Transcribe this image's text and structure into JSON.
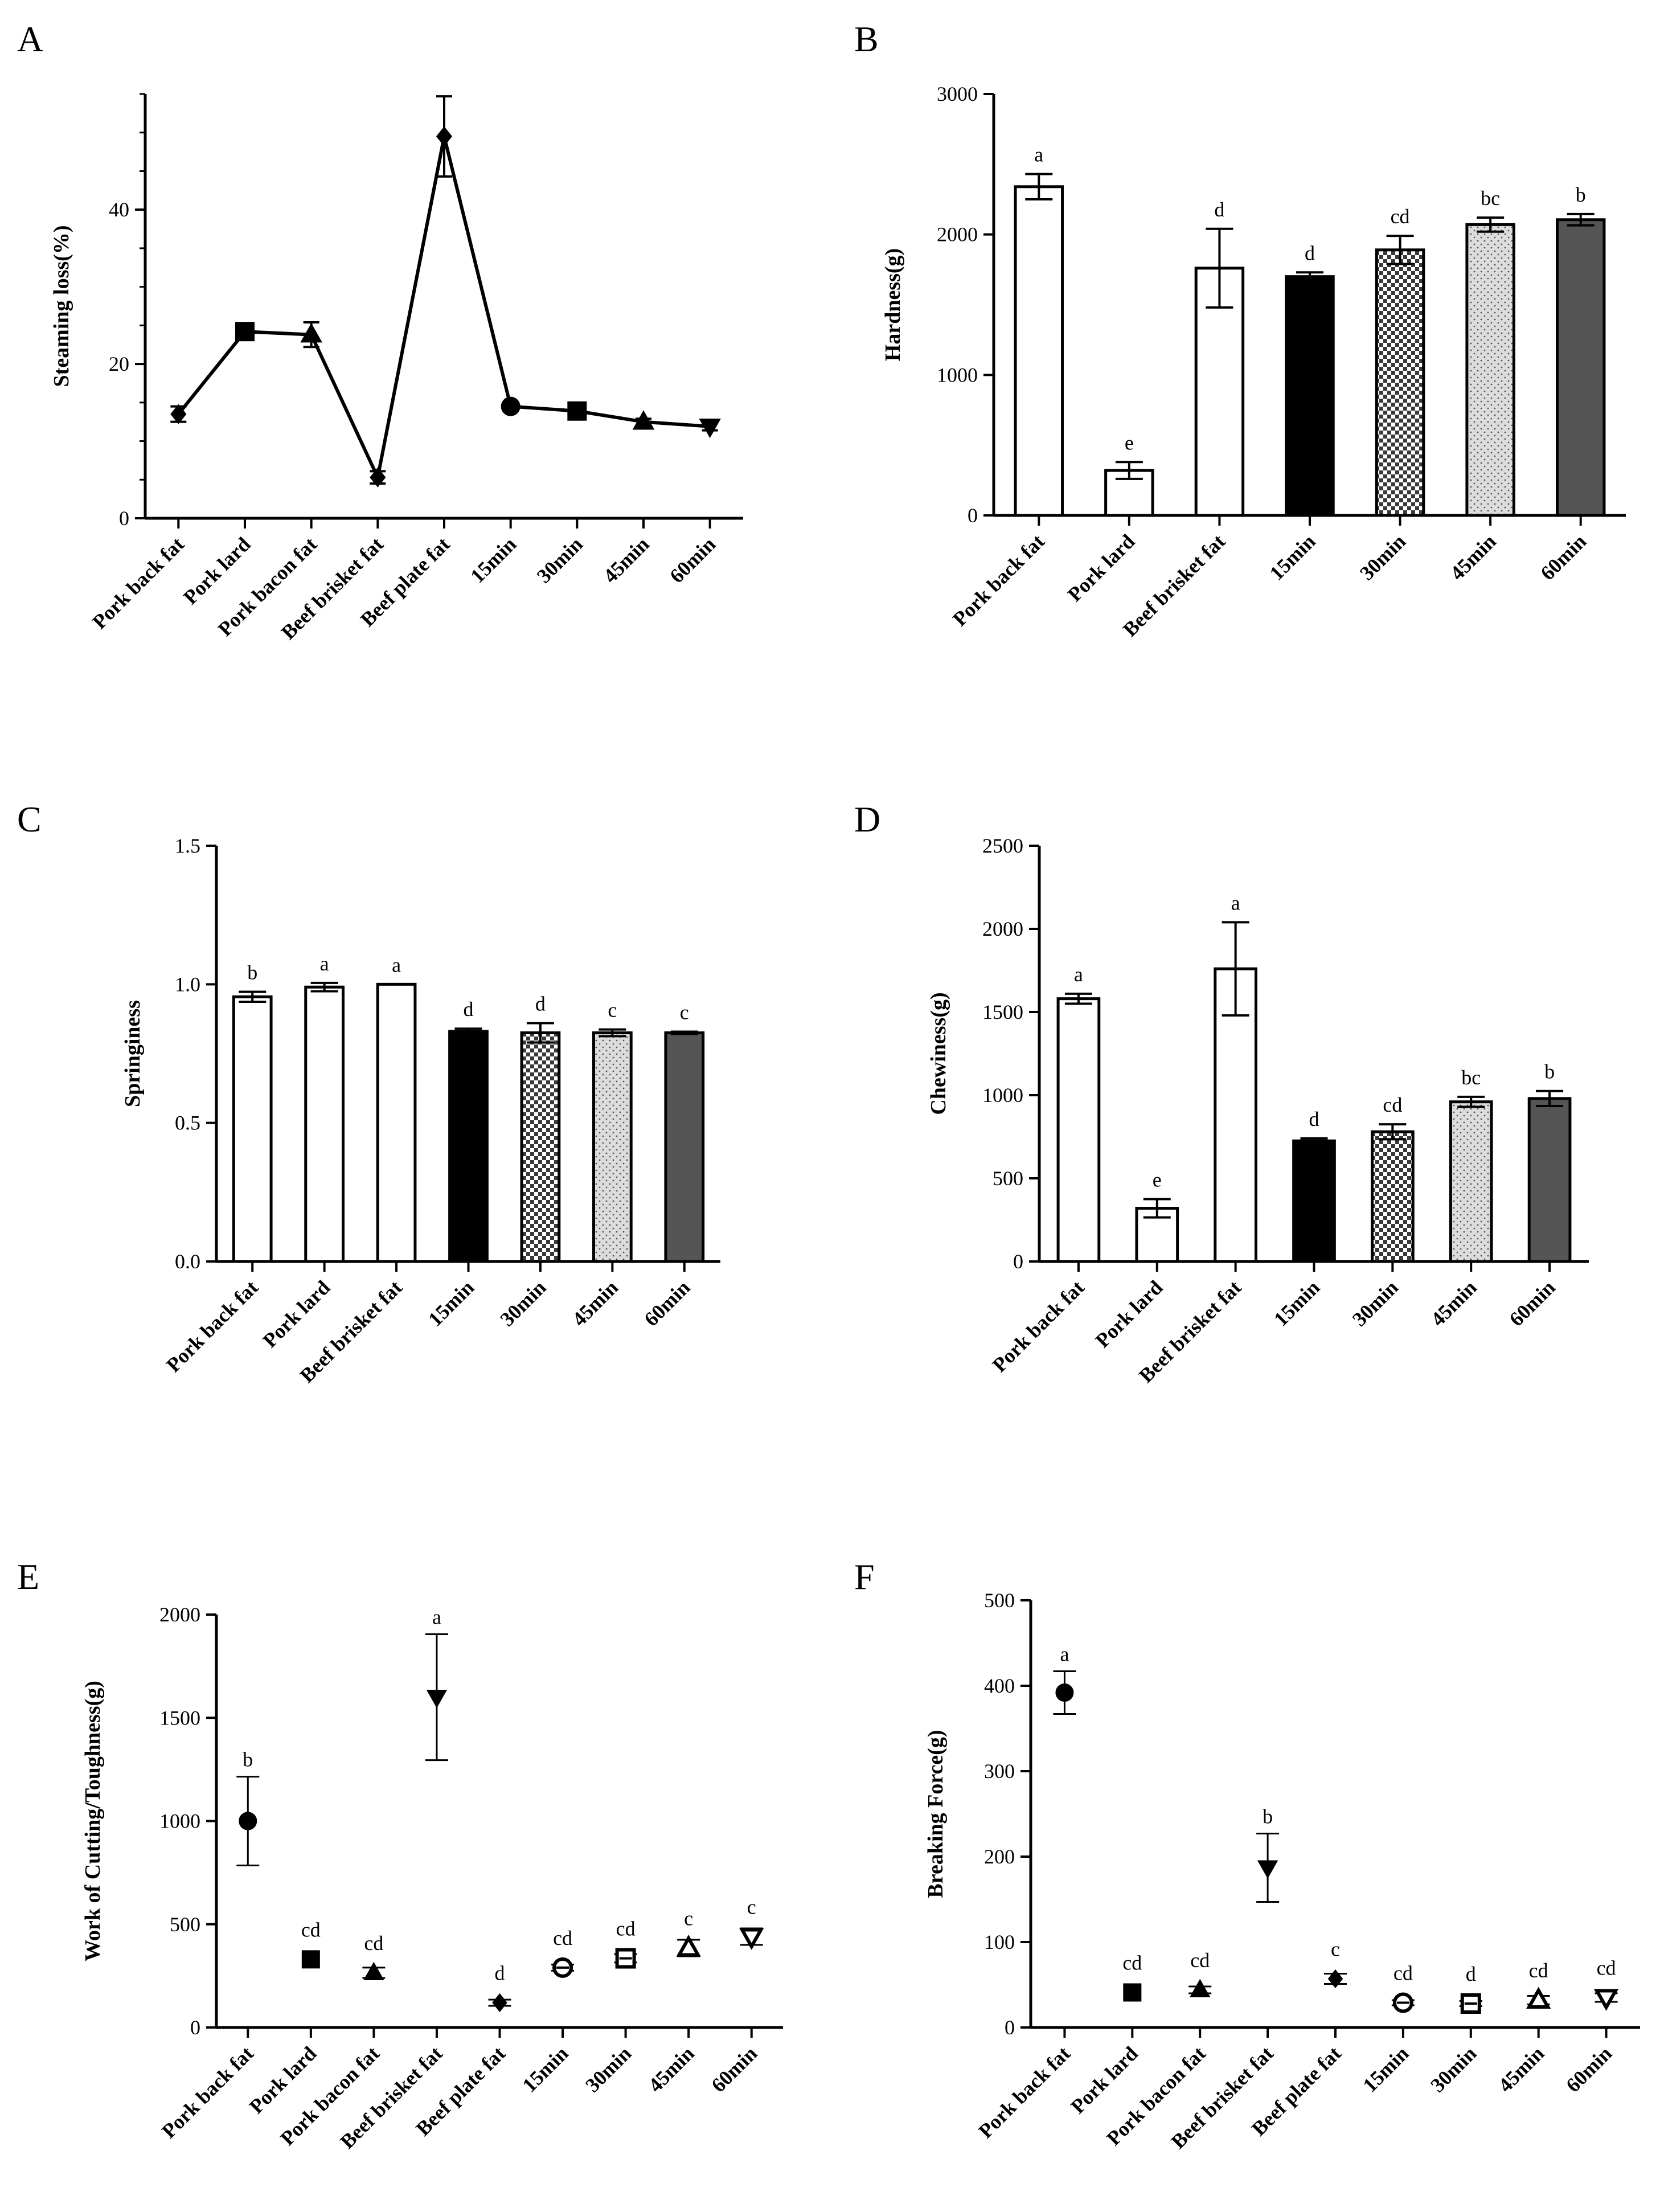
{
  "figure": {
    "panels": [
      "A",
      "B",
      "C",
      "D",
      "E",
      "F"
    ]
  },
  "colors": {
    "black": "#000000",
    "white": "#ffffff",
    "dark_gray": "#555555",
    "light_dot": "#dcdcdc"
  },
  "chart_data": [
    {
      "panel": "A",
      "type": "line",
      "title": "",
      "xlabel": "",
      "ylabel": "Steaming loss(%)",
      "ylim": [
        0,
        55
      ],
      "yticks": [
        0,
        20,
        40
      ],
      "categories": [
        "Pork back fat",
        "Pork lard",
        "Pork bacon fat",
        "Beef brisket fat",
        "Beef plate fat",
        "15min",
        "30min",
        "45min",
        "60min"
      ],
      "values": [
        13.5,
        24.2,
        23.8,
        5.3,
        49.5,
        14.5,
        13.9,
        12.5,
        11.9
      ],
      "errors": [
        1.0,
        0.8,
        1.6,
        0.8,
        5.2,
        0.5,
        0.5,
        0.4,
        0.5
      ],
      "markers": [
        "diamond",
        "square",
        "triangle",
        "diamond",
        "diamond",
        "circle",
        "square",
        "triangle",
        "triangle-down"
      ]
    },
    {
      "panel": "B",
      "type": "bar",
      "title": "",
      "xlabel": "",
      "ylabel": "Hardness(g)",
      "ylim": [
        0,
        3000
      ],
      "yticks": [
        0,
        1000,
        2000,
        3000
      ],
      "categories": [
        "Pork back fat",
        "Pork lard",
        "Beef brisket fat",
        "15min",
        "30min",
        "45min",
        "60min"
      ],
      "values": [
        2340,
        320,
        1760,
        1700,
        1890,
        2070,
        2105
      ],
      "errors": [
        90,
        60,
        280,
        30,
        100,
        50,
        40
      ],
      "letters": [
        "a",
        "e",
        "d",
        "d",
        "cd",
        "bc",
        "b"
      ],
      "fills": [
        "white",
        "white",
        "white",
        "black",
        "check",
        "dots",
        "gray"
      ]
    },
    {
      "panel": "C",
      "type": "bar",
      "title": "",
      "xlabel": "",
      "ylabel": "Springiness",
      "ylim": [
        0,
        1.5
      ],
      "yticks": [
        "0.0",
        "0.5",
        "1.0",
        "1.5"
      ],
      "categories": [
        "Pork back fat",
        "Pork lard",
        "Beef brisket fat",
        "15min",
        "30min",
        "45min",
        "60min"
      ],
      "values": [
        0.955,
        0.99,
        1.0,
        0.83,
        0.825,
        0.825,
        0.825
      ],
      "errors": [
        0.018,
        0.015,
        0.0,
        0.01,
        0.035,
        0.012,
        0.004
      ],
      "letters": [
        "b",
        "a",
        "a",
        "d",
        "d",
        "c",
        "c"
      ],
      "fills": [
        "white",
        "white",
        "white",
        "black",
        "check",
        "dots",
        "gray"
      ]
    },
    {
      "panel": "D",
      "type": "bar",
      "title": "",
      "xlabel": "",
      "ylabel": "Chewiness(g)",
      "ylim": [
        0,
        2500
      ],
      "yticks": [
        0,
        500,
        1000,
        1500,
        2000,
        2500
      ],
      "categories": [
        "Pork back fat",
        "Pork lard",
        "Beef brisket fat",
        "15min",
        "30min",
        "45min",
        "60min"
      ],
      "values": [
        1580,
        320,
        1760,
        725,
        780,
        960,
        980
      ],
      "errors": [
        30,
        55,
        280,
        15,
        45,
        30,
        45
      ],
      "letters": [
        "a",
        "e",
        "a",
        "d",
        "cd",
        "bc",
        "b"
      ],
      "fills": [
        "white",
        "white",
        "white",
        "black",
        "check",
        "dots",
        "gray"
      ]
    },
    {
      "panel": "E",
      "type": "scatter",
      "title": "",
      "xlabel": "",
      "ylabel": "Work of Cutting/Toughness(g)",
      "ylim": [
        0,
        2000
      ],
      "yticks": [
        0,
        500,
        1000,
        1500,
        2000
      ],
      "categories": [
        "Pork back fat",
        "Pork lard",
        "Pork bacon fat",
        "Beef brisket fat",
        "Beef plate fat",
        "15min",
        "30min",
        "45min",
        "60min"
      ],
      "values": [
        1000,
        330,
        265,
        1600,
        120,
        290,
        335,
        385,
        440
      ],
      "errors": [
        215,
        0,
        25,
        305,
        15,
        15,
        20,
        40,
        40
      ],
      "letters": [
        "b",
        "cd",
        "cd",
        "a",
        "d",
        "cd",
        "cd",
        "c",
        "c"
      ],
      "markers": [
        "circle",
        "square",
        "triangle",
        "triangle-down",
        "diamond",
        "circle-open",
        "square-open",
        "triangle-open",
        "triangle-down-open"
      ]
    },
    {
      "panel": "F",
      "type": "scatter",
      "title": "",
      "xlabel": "",
      "ylabel": "Breaking Force(g)",
      "ylim": [
        0,
        500
      ],
      "yticks": [
        0,
        100,
        200,
        300,
        400,
        500
      ],
      "categories": [
        "Pork back fat",
        "Pork lard",
        "Pork bacon fat",
        "Beef brisket fat",
        "Beef plate fat",
        "15min",
        "30min",
        "45min",
        "60min"
      ],
      "values": [
        392,
        41,
        44,
        187,
        57,
        29,
        28,
        32,
        35
      ],
      "errors": [
        25,
        0,
        4,
        40,
        6,
        3,
        3,
        5,
        5
      ],
      "letters": [
        "a",
        "cd",
        "cd",
        "b",
        "c",
        "cd",
        "d",
        "cd",
        "cd"
      ],
      "markers": [
        "circle",
        "square",
        "triangle",
        "triangle-down",
        "diamond",
        "circle-open",
        "square-open",
        "triangle-open",
        "triangle-down-open"
      ]
    }
  ]
}
